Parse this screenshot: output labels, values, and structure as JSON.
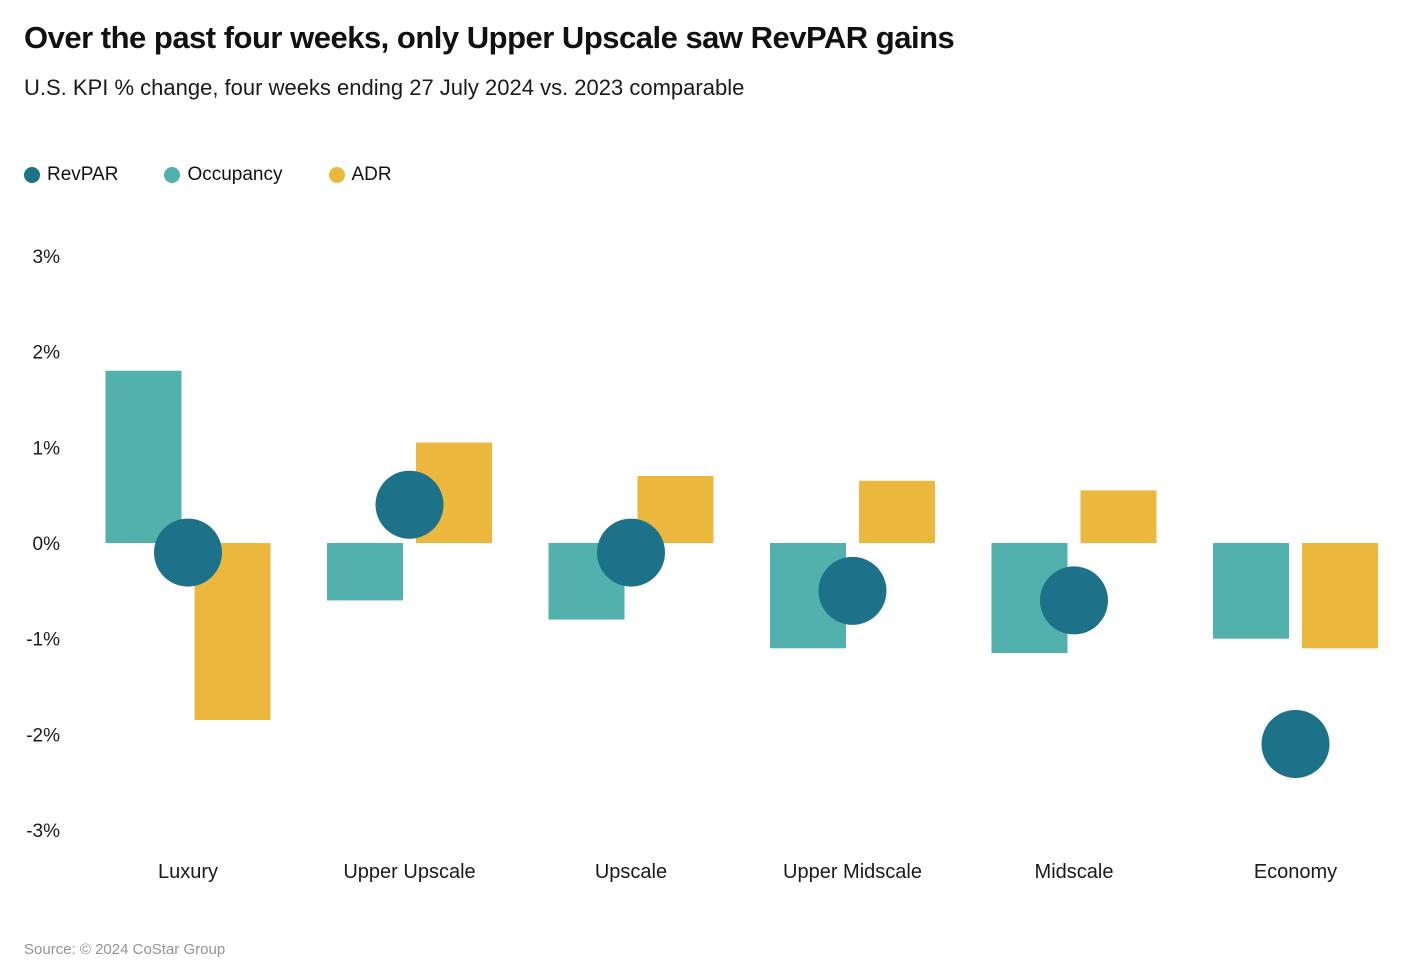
{
  "header": {
    "title": "Over the past four weeks, only Upper Upscale saw RevPAR gains",
    "subtitle": "U.S. KPI % change, four weeks ending 27 July 2024 vs. 2023 comparable"
  },
  "legend": [
    {
      "label": "RevPAR",
      "color": "#1d7189",
      "icon": "circle-swatch"
    },
    {
      "label": "Occupancy",
      "color": "#52b0ad",
      "icon": "circle-swatch"
    },
    {
      "label": "ADR",
      "color": "#ecb73d",
      "icon": "circle-swatch"
    }
  ],
  "chart_data": {
    "type": "bar",
    "title": "Over the past four weeks, only Upper Upscale saw RevPAR gains",
    "subtitle": "U.S. KPI % change, four weeks ending 27 July 2024 vs. 2023 comparable",
    "categories": [
      "Luxury",
      "Upper Upscale",
      "Upscale",
      "Upper Midscale",
      "Midscale",
      "Economy"
    ],
    "series": [
      {
        "name": "Occupancy",
        "type": "bar",
        "color": "#52b0ad",
        "values": [
          1.8,
          -0.6,
          -0.8,
          -1.1,
          -1.15,
          -1.0
        ]
      },
      {
        "name": "ADR",
        "type": "bar",
        "color": "#ecb73d",
        "values": [
          -1.85,
          1.05,
          0.7,
          0.65,
          0.55,
          -1.1
        ]
      },
      {
        "name": "RevPAR",
        "type": "point",
        "color": "#1d7189",
        "values": [
          -0.1,
          0.4,
          -0.1,
          -0.5,
          -0.6,
          -2.1
        ]
      }
    ],
    "xlabel": "",
    "ylabel": "",
    "ylim": [
      -3,
      3
    ],
    "y_ticks": [
      {
        "value": 3,
        "label": "3%"
      },
      {
        "value": 2,
        "label": "2%"
      },
      {
        "value": 1,
        "label": "1%"
      },
      {
        "value": 0,
        "label": "0%"
      },
      {
        "value": -1,
        "label": "-1%"
      },
      {
        "value": -2,
        "label": "-2%"
      },
      {
        "value": -3,
        "label": "-3%"
      }
    ],
    "grid": false,
    "legend_position": "top-left",
    "unit": "%"
  },
  "footer": {
    "source": "Source: © 2024 CoStar Group"
  }
}
